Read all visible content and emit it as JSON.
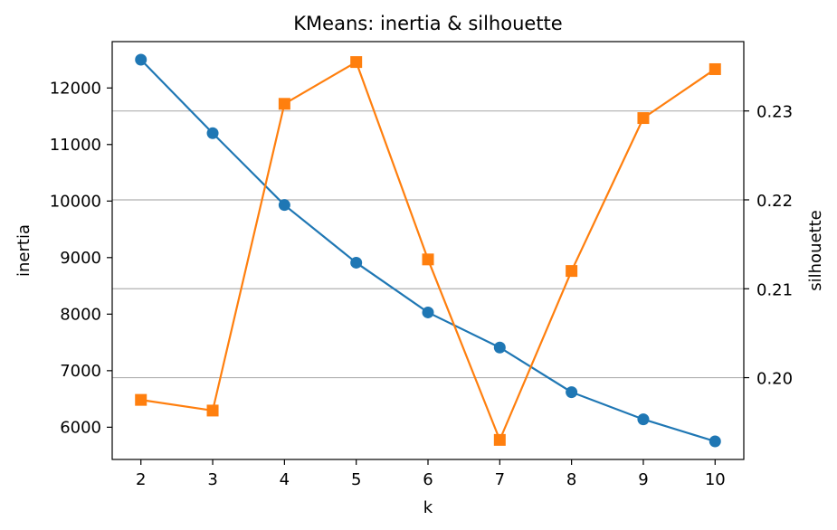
{
  "chart_data": {
    "type": "line",
    "title": "KMeans: inertia & silhouette",
    "xlabel": "k",
    "ylabel_left": "inertia",
    "ylabel_right": "silhouette",
    "x": [
      2,
      3,
      4,
      5,
      6,
      7,
      8,
      9,
      10
    ],
    "xlim": [
      1.6,
      10.4
    ],
    "ylim_left": [
      5430,
      12820
    ],
    "ylim_right": [
      0.1908,
      0.2378
    ],
    "yticks_left": [
      6000,
      7000,
      8000,
      9000,
      10000,
      11000,
      12000
    ],
    "yticks_right": [
      0.2,
      0.21,
      0.22,
      0.23
    ],
    "ytick_labels_right": [
      "0.20",
      "0.21",
      "0.22",
      "0.23"
    ],
    "grid": "horizontal lines on right axis ticks",
    "series": [
      {
        "axis": "left",
        "color": "#1f77b4",
        "marker": "circle",
        "values": [
          12500,
          11200,
          9930,
          8910,
          8030,
          7410,
          6620,
          6140,
          5750
        ]
      },
      {
        "axis": "right",
        "color": "#ff7f0e",
        "marker": "square",
        "values": [
          0.1975,
          0.1963,
          0.2308,
          0.2355,
          0.2133,
          0.193,
          0.212,
          0.2292,
          0.2347
        ]
      }
    ]
  }
}
